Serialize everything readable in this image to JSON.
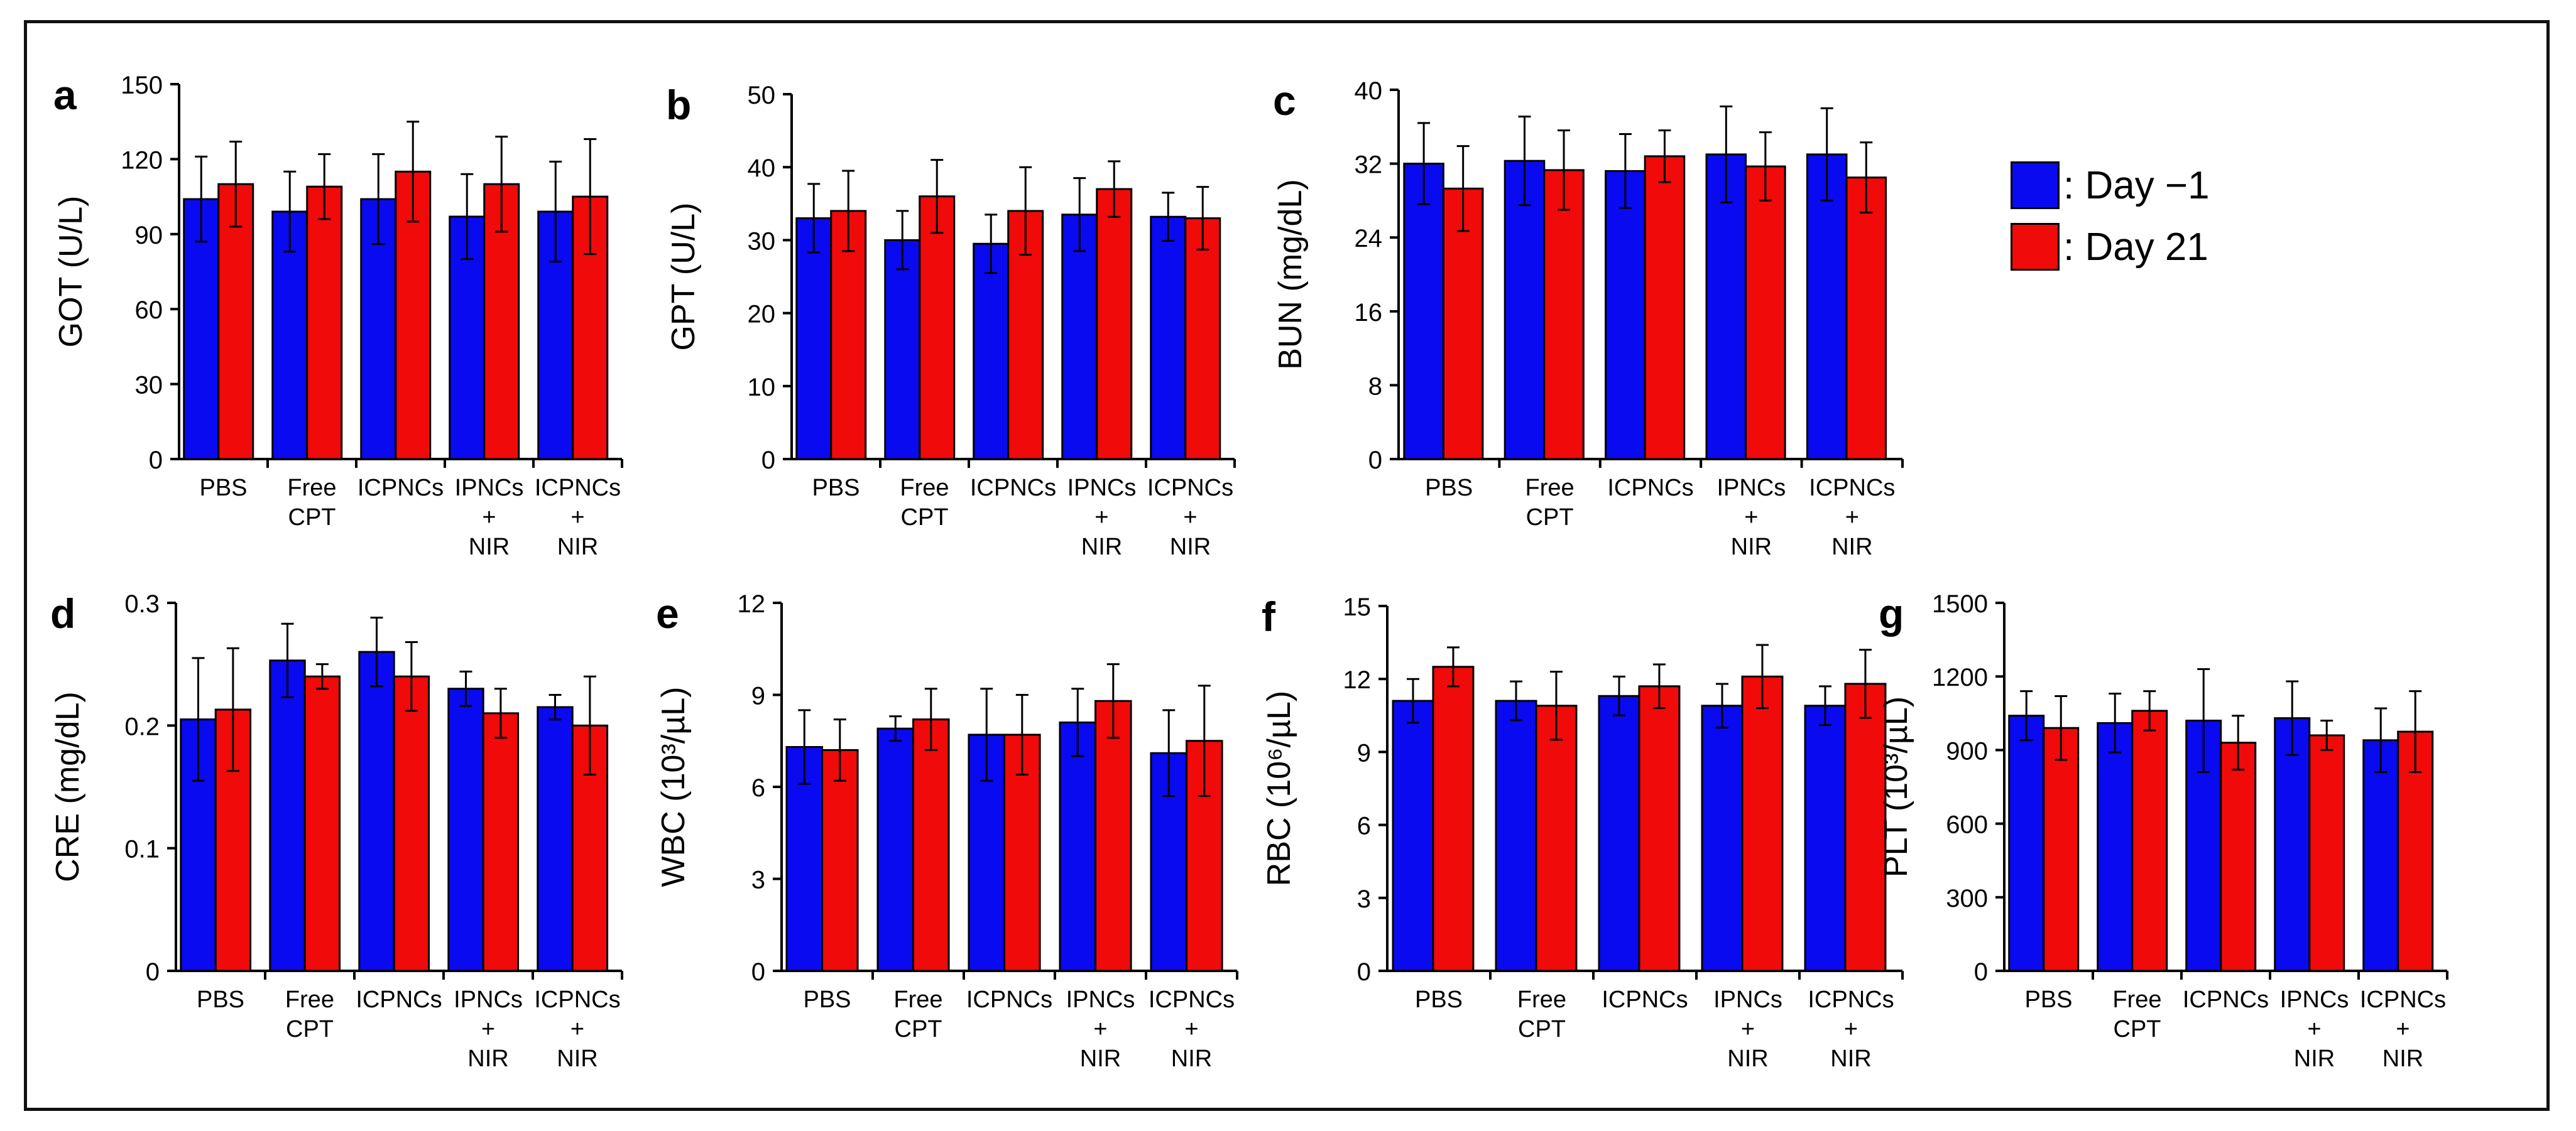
{
  "figure": {
    "legend": [
      {
        "label": ": Day −1",
        "color": "#0a0af0"
      },
      {
        "label": ": Day 21",
        "color": "#f00a0a"
      }
    ]
  },
  "chart_data": [
    {
      "panel": "a",
      "type": "bar",
      "ylabel": "GOT (U/L)",
      "ylim": [
        0,
        150
      ],
      "yticks": [
        "0",
        "30",
        "60",
        "90",
        "120",
        "150"
      ],
      "categories": [
        [
          "PBS"
        ],
        [
          "Free",
          "CPT"
        ],
        [
          "ICPNCs"
        ],
        [
          "IPNCs",
          "+",
          "NIR"
        ],
        [
          "ICPNCs",
          "+",
          "NIR"
        ]
      ],
      "series": [
        {
          "name": "Day −1",
          "values": [
            104,
            99,
            104,
            97,
            99
          ],
          "errors": [
            17,
            16,
            18,
            17,
            20
          ]
        },
        {
          "name": "Day 21",
          "values": [
            110,
            109,
            115,
            110,
            105
          ],
          "errors": [
            17,
            13,
            20,
            19,
            23
          ]
        }
      ]
    },
    {
      "panel": "b",
      "type": "bar",
      "ylabel": "GPT (U/L)",
      "ylim": [
        0,
        50
      ],
      "yticks": [
        "0",
        "10",
        "20",
        "30",
        "40",
        "50"
      ],
      "categories": [
        [
          "PBS"
        ],
        [
          "Free",
          "CPT"
        ],
        [
          "ICPNCs"
        ],
        [
          "IPNCs",
          "+",
          "NIR"
        ],
        [
          "ICPNCs",
          "+",
          "NIR"
        ]
      ],
      "series": [
        {
          "name": "Day −1",
          "values": [
            33,
            30,
            29.5,
            33.5,
            33.2
          ],
          "errors": [
            4.7,
            4,
            4,
            5,
            3.3
          ]
        },
        {
          "name": "Day 21",
          "values": [
            34,
            36,
            34,
            37,
            33
          ],
          "errors": [
            5.5,
            5,
            6,
            3.8,
            4.3
          ]
        }
      ]
    },
    {
      "panel": "c",
      "type": "bar",
      "ylabel": "BUN (mg/dL)",
      "ylim": [
        0,
        40
      ],
      "yticks": [
        "0",
        "8",
        "16",
        "24",
        "32",
        "40"
      ],
      "categories": [
        [
          "PBS"
        ],
        [
          "Free",
          "CPT"
        ],
        [
          "ICPNCs"
        ],
        [
          "IPNCs",
          "+",
          "NIR"
        ],
        [
          "ICPNCs",
          "+",
          "NIR"
        ]
      ],
      "series": [
        {
          "name": "Day −1",
          "values": [
            32,
            32.3,
            31.2,
            33,
            33
          ],
          "errors": [
            4.4,
            4.8,
            4,
            5.2,
            5
          ]
        },
        {
          "name": "Day 21",
          "values": [
            29.3,
            31.3,
            32.8,
            31.7,
            30.5
          ],
          "errors": [
            4.6,
            4.3,
            2.8,
            3.7,
            3.8
          ]
        }
      ]
    },
    {
      "panel": "d",
      "type": "bar",
      "ylabel": "CRE (mg/dL)",
      "ylim": [
        0,
        0.3
      ],
      "yticks": [
        "0",
        "0.1",
        "0.2",
        "0.3"
      ],
      "categories": [
        [
          "PBS"
        ],
        [
          "Free",
          "CPT"
        ],
        [
          "ICPNCs"
        ],
        [
          "IPNCs",
          "+",
          "NIR"
        ],
        [
          "ICPNCs",
          "+",
          "NIR"
        ]
      ],
      "series": [
        {
          "name": "Day −1",
          "values": [
            0.205,
            0.253,
            0.26,
            0.23,
            0.215
          ],
          "errors": [
            0.05,
            0.03,
            0.028,
            0.014,
            0.01
          ]
        },
        {
          "name": "Day 21",
          "values": [
            0.213,
            0.24,
            0.24,
            0.21,
            0.2
          ],
          "errors": [
            0.05,
            0.01,
            0.028,
            0.02,
            0.04
          ]
        }
      ]
    },
    {
      "panel": "e",
      "type": "bar",
      "ylabel": "WBC (10³/µL)",
      "ylim": [
        0,
        12
      ],
      "yticks": [
        "0",
        "3",
        "6",
        "9",
        "12"
      ],
      "categories": [
        [
          "PBS"
        ],
        [
          "Free",
          "CPT"
        ],
        [
          "ICPNCs"
        ],
        [
          "IPNCs",
          "+",
          "NIR"
        ],
        [
          "ICPNCs",
          "+",
          "NIR"
        ]
      ],
      "series": [
        {
          "name": "Day −1",
          "values": [
            7.3,
            7.9,
            7.7,
            8.1,
            7.1
          ],
          "errors": [
            1.2,
            0.4,
            1.5,
            1.1,
            1.4
          ]
        },
        {
          "name": "Day 21",
          "values": [
            7.2,
            8.2,
            7.7,
            8.8,
            7.5
          ],
          "errors": [
            1.0,
            1.0,
            1.3,
            1.2,
            1.8
          ]
        }
      ]
    },
    {
      "panel": "f",
      "type": "bar",
      "ylabel": "RBC (10⁶/µL)",
      "ylim": [
        0,
        15
      ],
      "yticks": [
        "0",
        "3",
        "6",
        "9",
        "12",
        "15"
      ],
      "categories": [
        [
          "PBS"
        ],
        [
          "Free",
          "CPT"
        ],
        [
          "ICPNCs"
        ],
        [
          "IPNCs",
          "+",
          "NIR"
        ],
        [
          "ICPNCs",
          "+",
          "NIR"
        ]
      ],
      "series": [
        {
          "name": "Day −1",
          "values": [
            11.1,
            11.1,
            11.3,
            10.9,
            10.9
          ],
          "errors": [
            0.9,
            0.8,
            0.8,
            0.9,
            0.8
          ]
        },
        {
          "name": "Day 21",
          "values": [
            12.5,
            10.9,
            11.7,
            12.1,
            11.8
          ],
          "errors": [
            0.8,
            1.4,
            0.9,
            1.3,
            1.4
          ]
        }
      ]
    },
    {
      "panel": "g",
      "type": "bar",
      "ylabel": "PLT (10³/µL)",
      "ylim": [
        0,
        1500
      ],
      "yticks": [
        "0",
        "300",
        "600",
        "900",
        "1200",
        "1500"
      ],
      "categories": [
        [
          "PBS"
        ],
        [
          "Free",
          "CPT"
        ],
        [
          "ICPNCs"
        ],
        [
          "IPNCs",
          "+",
          "NIR"
        ],
        [
          "ICPNCs",
          "+",
          "NIR"
        ]
      ],
      "series": [
        {
          "name": "Day −1",
          "values": [
            1040,
            1010,
            1020,
            1030,
            940
          ],
          "errors": [
            100,
            120,
            210,
            150,
            130
          ]
        },
        {
          "name": "Day 21",
          "values": [
            990,
            1060,
            930,
            960,
            975
          ],
          "errors": [
            130,
            80,
            110,
            60,
            165
          ]
        }
      ]
    }
  ]
}
